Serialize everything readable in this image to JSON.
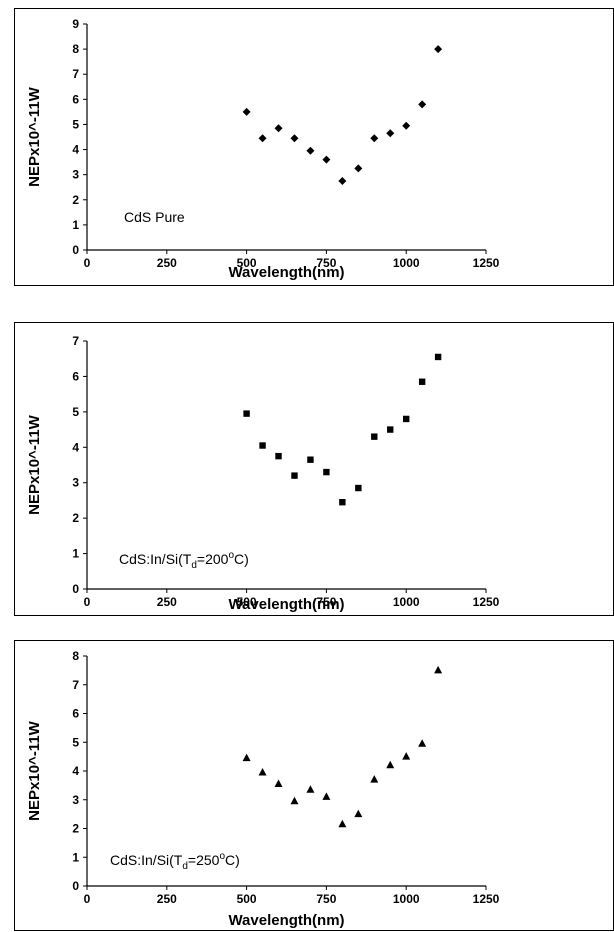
{
  "chart_data": [
    {
      "type": "scatter",
      "marker": "diamond",
      "annotation": "CdS Pure",
      "xlabel": "Wavelength(nm)",
      "ylabel": "NEPx10^-11W",
      "xlim": [
        0,
        1250
      ],
      "ylim": [
        0,
        9
      ],
      "x_ticks": [
        "0",
        "250",
        "500",
        "750",
        "1000",
        "1250"
      ],
      "y_ticks": [
        "0",
        "1",
        "2",
        "3",
        "4",
        "5",
        "6",
        "7",
        "8",
        "9"
      ],
      "x": [
        500,
        550,
        600,
        650,
        700,
        750,
        800,
        850,
        900,
        950,
        1000,
        1050,
        1100
      ],
      "y": [
        5.5,
        4.45,
        4.85,
        4.45,
        3.95,
        3.6,
        2.75,
        3.25,
        4.45,
        4.65,
        4.95,
        5.8,
        8.0
      ]
    },
    {
      "type": "scatter",
      "marker": "square",
      "annotation": "CdS:In/Si(Td=200oC)",
      "annotation_parts": {
        "main": "CdS:In/Si(T",
        "sub": "d",
        "mid": "=200",
        "sup": "o",
        "end": "C)"
      },
      "xlabel": "Wavelength(nm)",
      "ylabel": "NEPx10^-11W",
      "xlim": [
        0,
        1250
      ],
      "ylim": [
        0,
        7
      ],
      "x_ticks": [
        "0",
        "250",
        "500",
        "750",
        "1000",
        "1250"
      ],
      "y_ticks": [
        "0",
        "1",
        "2",
        "3",
        "4",
        "5",
        "6",
        "7"
      ],
      "x": [
        500,
        550,
        600,
        650,
        700,
        750,
        800,
        850,
        900,
        950,
        1000,
        1050,
        1100
      ],
      "y": [
        4.95,
        4.05,
        3.75,
        3.2,
        3.65,
        3.3,
        2.45,
        2.85,
        4.3,
        4.5,
        4.8,
        5.85,
        6.55
      ]
    },
    {
      "type": "scatter",
      "marker": "triangle",
      "annotation": "CdS:In/Si(Td=250oC)",
      "annotation_parts": {
        "main": "CdS:In/Si(T",
        "sub": "d",
        "mid": "=250",
        "sup": "o",
        "end": "C)"
      },
      "xlabel": "Wavelength(nm)",
      "ylabel": "NEPx10^-11W",
      "xlim": [
        0,
        1250
      ],
      "ylim": [
        0,
        8
      ],
      "x_ticks": [
        "0",
        "250",
        "500",
        "750",
        "1000",
        "1250"
      ],
      "y_ticks": [
        "0",
        "1",
        "2",
        "3",
        "4",
        "5",
        "6",
        "7",
        "8"
      ],
      "x": [
        500,
        550,
        600,
        650,
        700,
        750,
        800,
        850,
        900,
        950,
        1000,
        1050,
        1100
      ],
      "y": [
        4.45,
        3.95,
        3.55,
        2.95,
        3.35,
        3.1,
        2.15,
        2.5,
        3.7,
        4.2,
        4.5,
        4.95,
        7.5
      ]
    }
  ]
}
